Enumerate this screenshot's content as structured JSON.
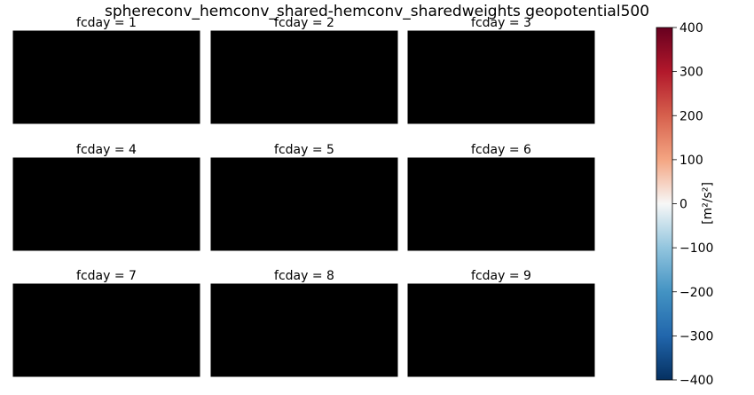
{
  "chart_data": {
    "type": "heatmap",
    "title": "sphereconv_hemconv_shared-hemconv_sharedweights geopotential500",
    "panels": [
      {
        "title": "fcday = 1",
        "fcday": 1
      },
      {
        "title": "fcday = 2",
        "fcday": 2
      },
      {
        "title": "fcday = 3",
        "fcday": 3
      },
      {
        "title": "fcday = 4",
        "fcday": 4
      },
      {
        "title": "fcday = 5",
        "fcday": 5
      },
      {
        "title": "fcday = 6",
        "fcday": 6
      },
      {
        "title": "fcday = 7",
        "fcday": 7
      },
      {
        "title": "fcday = 8",
        "fcday": 8
      },
      {
        "title": "fcday = 9",
        "fcday": 9
      }
    ],
    "colorbar": {
      "label": "[m²/s²]",
      "colormap": "RdBu_r",
      "vmin": -400,
      "vmax": 400,
      "ticks": [
        400,
        300,
        200,
        100,
        0,
        -100,
        -200,
        -300,
        -400
      ],
      "tick_labels": [
        "400",
        "300",
        "200",
        "100",
        "0",
        "−100",
        "−200",
        "−300",
        "−400"
      ]
    },
    "grid": true,
    "projection": "PlateCarree, global coastlines"
  },
  "colors": {
    "max": "#67001f",
    "high": "#d6604d",
    "mid": "#f7f7f7",
    "low": "#4393c3",
    "min": "#053061"
  }
}
